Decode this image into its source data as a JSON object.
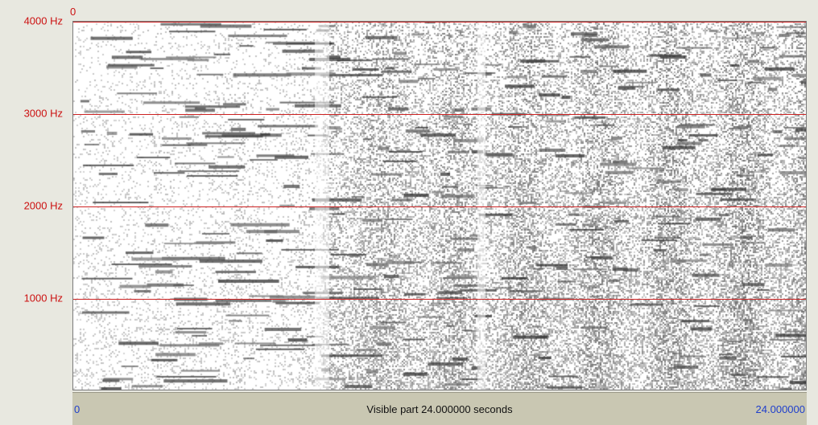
{
  "spectrogram": {
    "top_label": "0",
    "freq_labels": [
      "4000 Hz",
      "3000 Hz",
      "2000 Hz",
      "1000 Hz"
    ],
    "freq_values": [
      4000,
      3000,
      2000,
      1000
    ],
    "max_freq": 4000,
    "grid_color": "#cc2222",
    "label_color": "#cc1111"
  },
  "time_bar": {
    "start": "0",
    "caption": "Visible part 24.000000 seconds",
    "end": "24.000000",
    "value_color": "#1f3fcc",
    "background": "#c9c7b2"
  }
}
